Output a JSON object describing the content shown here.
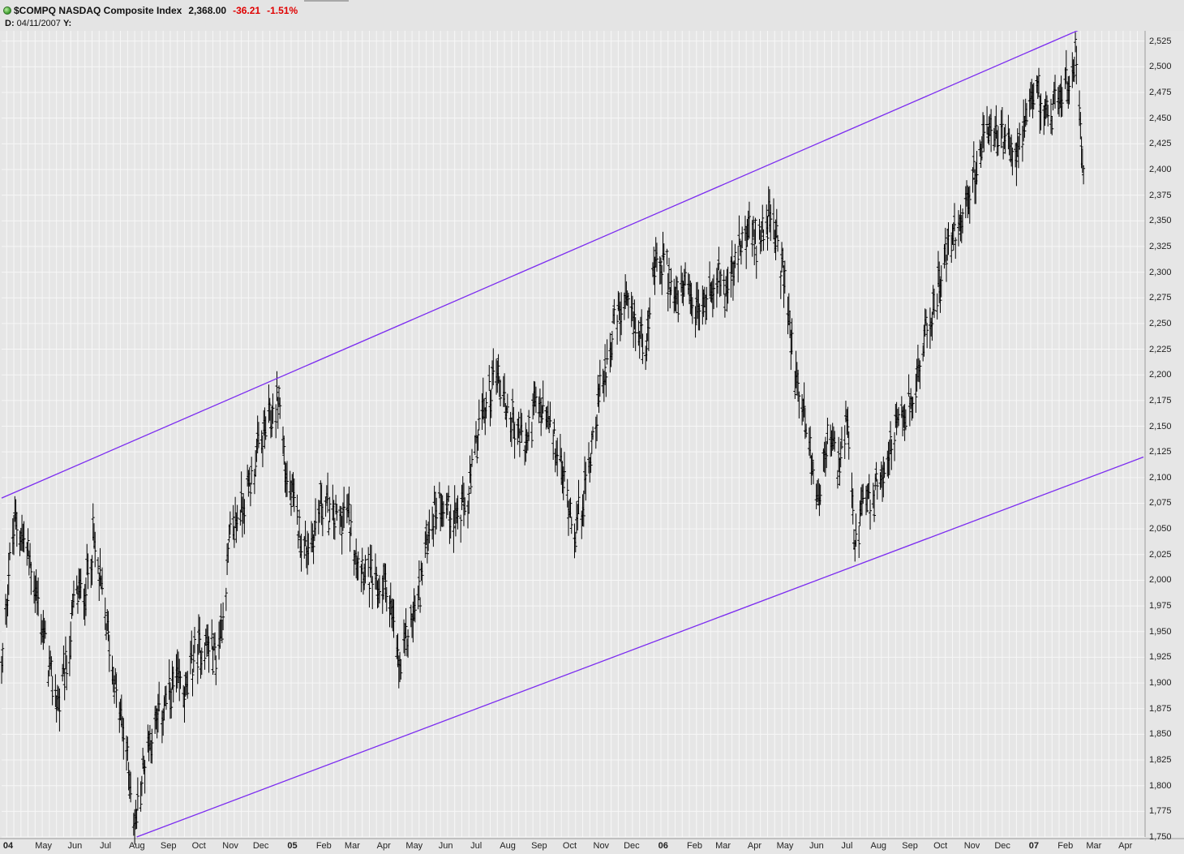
{
  "header": {
    "symbol_line": "$COMPQ NASDAQ Composite Index",
    "last": "2,368.00",
    "change": "-36.21",
    "change_pct": "-1.51%",
    "date_label": "D:",
    "date_value": "04/11/2007",
    "y_label": "Y:"
  },
  "colors": {
    "background": "#e6e6e6",
    "grid": "#f7f7f7",
    "bars": "#000000",
    "trendline": "#7b2bf0",
    "negative": "#e00000",
    "status_dot": "#3a9a2a"
  },
  "chart_data": {
    "type": "ohlc",
    "title": "$COMPQ NASDAQ Composite Index",
    "ylim": [
      1750,
      2535
    ],
    "y_ticks": [
      "1,750",
      "1,775",
      "1,800",
      "1,825",
      "1,850",
      "1,875",
      "1,900",
      "1,925",
      "1,950",
      "1,975",
      "2,000",
      "2,025",
      "2,050",
      "2,075",
      "2,100",
      "2,125",
      "2,150",
      "2,175",
      "2,200",
      "2,225",
      "2,250",
      "2,275",
      "2,300",
      "2,325",
      "2,350",
      "2,375",
      "2,400",
      "2,425",
      "2,450",
      "2,475",
      "2,500",
      "2,525"
    ],
    "x_range": [
      "2004-04-01",
      "2007-04-30"
    ],
    "x_ticks": [
      {
        "label": "04",
        "date": "2004-04-01",
        "year": true
      },
      {
        "label": "May",
        "date": "2004-05-01"
      },
      {
        "label": "Jun",
        "date": "2004-06-01"
      },
      {
        "label": "Jul",
        "date": "2004-07-01"
      },
      {
        "label": "Aug",
        "date": "2004-08-01"
      },
      {
        "label": "Sep",
        "date": "2004-09-01"
      },
      {
        "label": "Oct",
        "date": "2004-10-01"
      },
      {
        "label": "Nov",
        "date": "2004-11-01"
      },
      {
        "label": "Dec",
        "date": "2004-12-01"
      },
      {
        "label": "05",
        "date": "2005-01-01",
        "year": true
      },
      {
        "label": "Feb",
        "date": "2005-02-01"
      },
      {
        "label": "Mar",
        "date": "2005-03-01"
      },
      {
        "label": "Apr",
        "date": "2005-04-01"
      },
      {
        "label": "May",
        "date": "2005-05-01"
      },
      {
        "label": "Jun",
        "date": "2005-06-01"
      },
      {
        "label": "Jul",
        "date": "2005-07-01"
      },
      {
        "label": "Aug",
        "date": "2005-08-01"
      },
      {
        "label": "Sep",
        "date": "2005-09-01"
      },
      {
        "label": "Oct",
        "date": "2005-10-01"
      },
      {
        "label": "Nov",
        "date": "2005-11-01"
      },
      {
        "label": "Dec",
        "date": "2005-12-01"
      },
      {
        "label": "06",
        "date": "2006-01-01",
        "year": true
      },
      {
        "label": "Feb",
        "date": "2006-02-01"
      },
      {
        "label": "Mar",
        "date": "2006-03-01"
      },
      {
        "label": "Apr",
        "date": "2006-04-01"
      },
      {
        "label": "May",
        "date": "2006-05-01"
      },
      {
        "label": "Jun",
        "date": "2006-06-01"
      },
      {
        "label": "Jul",
        "date": "2006-07-01"
      },
      {
        "label": "Aug",
        "date": "2006-08-01"
      },
      {
        "label": "Sep",
        "date": "2006-09-01"
      },
      {
        "label": "Oct",
        "date": "2006-10-01"
      },
      {
        "label": "Nov",
        "date": "2006-11-01"
      },
      {
        "label": "Dec",
        "date": "2006-12-01"
      },
      {
        "label": "07",
        "date": "2007-01-01",
        "year": true
      },
      {
        "label": "Feb",
        "date": "2007-02-01"
      },
      {
        "label": "Mar",
        "date": "2007-03-01"
      },
      {
        "label": "Apr",
        "date": "2007-04-01"
      }
    ],
    "series": [
      {
        "style": "ohlc-bars",
        "points": [
          [
            "2004-04-01",
            1910
          ],
          [
            "2004-04-08",
            2010
          ],
          [
            "2004-04-15",
            2060
          ],
          [
            "2004-04-22",
            2040
          ],
          [
            "2004-05-01",
            2010
          ],
          [
            "2004-05-10",
            1960
          ],
          [
            "2004-05-20",
            1900
          ],
          [
            "2004-05-28",
            1880
          ],
          [
            "2004-06-05",
            1920
          ],
          [
            "2004-06-12",
            1985
          ],
          [
            "2004-06-22",
            1990
          ],
          [
            "2004-06-30",
            2040
          ],
          [
            "2004-07-08",
            1990
          ],
          [
            "2004-07-16",
            1940
          ],
          [
            "2004-07-24",
            1880
          ],
          [
            "2004-08-01",
            1840
          ],
          [
            "2004-08-06",
            1800
          ],
          [
            "2004-08-10",
            1760
          ],
          [
            "2004-08-14",
            1785
          ],
          [
            "2004-08-22",
            1840
          ],
          [
            "2004-08-31",
            1860
          ],
          [
            "2004-09-10",
            1880
          ],
          [
            "2004-09-20",
            1900
          ],
          [
            "2004-09-30",
            1890
          ],
          [
            "2004-10-08",
            1930
          ],
          [
            "2004-10-20",
            1940
          ],
          [
            "2004-10-30",
            1925
          ],
          [
            "2004-11-05",
            1970
          ],
          [
            "2004-11-12",
            2040
          ],
          [
            "2004-11-22",
            2070
          ],
          [
            "2004-11-30",
            2090
          ],
          [
            "2004-12-08",
            2120
          ],
          [
            "2004-12-18",
            2150
          ],
          [
            "2004-12-24",
            2160
          ],
          [
            "2004-12-30",
            2180
          ],
          [
            "2005-01-06",
            2100
          ],
          [
            "2005-01-14",
            2070
          ],
          [
            "2005-01-24",
            2030
          ],
          [
            "2005-02-01",
            2040
          ],
          [
            "2005-02-10",
            2080
          ],
          [
            "2005-02-20",
            2060
          ],
          [
            "2005-02-28",
            2060
          ],
          [
            "2005-03-06",
            2070
          ],
          [
            "2005-03-16",
            2030
          ],
          [
            "2005-03-26",
            2010
          ],
          [
            "2005-04-05",
            1990
          ],
          [
            "2005-04-15",
            2000
          ],
          [
            "2005-04-22",
            1950
          ],
          [
            "2005-04-28",
            1910
          ],
          [
            "2005-05-06",
            1950
          ],
          [
            "2005-05-16",
            1980
          ],
          [
            "2005-05-26",
            2050
          ],
          [
            "2005-06-05",
            2080
          ],
          [
            "2005-06-15",
            2070
          ],
          [
            "2005-06-25",
            2060
          ],
          [
            "2005-07-05",
            2080
          ],
          [
            "2005-07-15",
            2150
          ],
          [
            "2005-07-25",
            2180
          ],
          [
            "2005-08-01",
            2210
          ],
          [
            "2005-08-10",
            2170
          ],
          [
            "2005-08-20",
            2150
          ],
          [
            "2005-08-30",
            2130
          ],
          [
            "2005-09-08",
            2170
          ],
          [
            "2005-09-18",
            2160
          ],
          [
            "2005-09-28",
            2130
          ],
          [
            "2005-10-08",
            2090
          ],
          [
            "2005-10-18",
            2050
          ],
          [
            "2005-10-28",
            2090
          ],
          [
            "2005-11-05",
            2150
          ],
          [
            "2005-11-15",
            2200
          ],
          [
            "2005-11-25",
            2250
          ],
          [
            "2005-12-05",
            2265
          ],
          [
            "2005-12-15",
            2250
          ],
          [
            "2005-12-25",
            2230
          ],
          [
            "2006-01-04",
            2300
          ],
          [
            "2006-01-14",
            2310
          ],
          [
            "2006-01-24",
            2270
          ],
          [
            "2006-02-03",
            2280
          ],
          [
            "2006-02-13",
            2260
          ],
          [
            "2006-02-23",
            2270
          ],
          [
            "2006-03-05",
            2300
          ],
          [
            "2006-03-15",
            2280
          ],
          [
            "2006-03-25",
            2310
          ],
          [
            "2006-04-04",
            2340
          ],
          [
            "2006-04-14",
            2330
          ],
          [
            "2006-04-24",
            2355
          ],
          [
            "2006-05-04",
            2330
          ],
          [
            "2006-05-12",
            2290
          ],
          [
            "2006-05-22",
            2200
          ],
          [
            "2006-06-01",
            2160
          ],
          [
            "2006-06-08",
            2110
          ],
          [
            "2006-06-14",
            2080
          ],
          [
            "2006-06-24",
            2140
          ],
          [
            "2006-07-04",
            2110
          ],
          [
            "2006-07-12",
            2150
          ],
          [
            "2006-07-20",
            2030
          ],
          [
            "2006-07-28",
            2070
          ],
          [
            "2006-08-07",
            2080
          ],
          [
            "2006-08-17",
            2110
          ],
          [
            "2006-08-27",
            2140
          ],
          [
            "2006-09-06",
            2160
          ],
          [
            "2006-09-16",
            2180
          ],
          [
            "2006-09-26",
            2230
          ],
          [
            "2006-10-06",
            2270
          ],
          [
            "2006-10-16",
            2310
          ],
          [
            "2006-10-26",
            2340
          ],
          [
            "2006-11-05",
            2360
          ],
          [
            "2006-11-15",
            2400
          ],
          [
            "2006-11-25",
            2430
          ],
          [
            "2006-12-05",
            2440
          ],
          [
            "2006-12-15",
            2420
          ],
          [
            "2006-12-25",
            2420
          ],
          [
            "2007-01-05",
            2440
          ],
          [
            "2007-01-15",
            2480
          ],
          [
            "2007-01-25",
            2450
          ],
          [
            "2007-02-04",
            2470
          ],
          [
            "2007-02-14",
            2480
          ],
          [
            "2007-02-24",
            2520
          ],
          [
            "2007-02-28",
            2420
          ],
          [
            "2007-03-04",
            2380
          ]
        ]
      }
    ],
    "trendlines": [
      {
        "from": [
          "2004-04-01",
          2080
        ],
        "to": [
          "2007-02-26",
          2536
        ]
      },
      {
        "from": [
          "2004-08-12",
          1750
        ],
        "to": [
          "2007-04-30",
          2120
        ]
      }
    ],
    "grid": true,
    "legend": "none"
  }
}
